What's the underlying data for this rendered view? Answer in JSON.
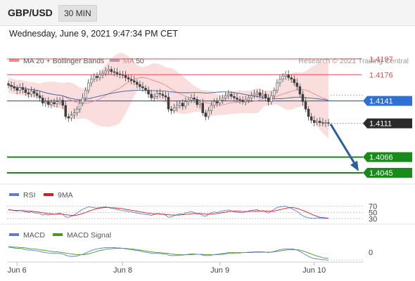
{
  "header": {
    "symbol": "GBP/USD",
    "timeframe": "30 MIN",
    "datetime": "Wednesday, June 9, 2021 9:47:34 PM CET"
  },
  "legend": {
    "ma20": "MA 20 + Bollinger Bands",
    "ma50": "MA 50",
    "credit": "Research © 2021 Trading Central",
    "rsi": "RSI",
    "rsi_ma": "9MA",
    "macd": "MACD",
    "macd_signal": "MACD Signal"
  },
  "colors": {
    "bollinger": "#f7c8c8",
    "ma20": "#f08a8a",
    "ma50": "#3a5f9e",
    "resistance": "#e05050",
    "pivot": "#2f6fd6",
    "support": "#1a8a1a",
    "current": "#2b2b2b",
    "arrow": "#2e5f9a",
    "rsi": "#5b7fd4",
    "rsi_ma": "#d02020",
    "macd": "#5b7fd4",
    "macd_signal": "#4a9a1a"
  },
  "chart_data": [
    {
      "type": "candlestick",
      "x_ticks": [
        "Jun 6",
        "Jun 8",
        "Jun 9",
        "Jun 10"
      ],
      "ylim": [
        1.403,
        1.421
      ],
      "levels": [
        {
          "label": "1.4197",
          "value": 1.4197,
          "kind": "resistance"
        },
        {
          "label": "1.4176",
          "value": 1.4176,
          "kind": "resistance"
        },
        {
          "label": "1.4141",
          "value": 1.4141,
          "kind": "pivot"
        },
        {
          "label": "1.4111",
          "value": 1.4111,
          "kind": "current"
        },
        {
          "label": "1.4066",
          "value": 1.4066,
          "kind": "support"
        },
        {
          "label": "1.4045",
          "value": 1.4045,
          "kind": "support"
        }
      ],
      "close": [
        1.4162,
        1.416,
        1.4158,
        1.4155,
        1.4159,
        1.4156,
        1.4152,
        1.415,
        1.4154,
        1.4151,
        1.4148,
        1.4145,
        1.4138,
        1.414,
        1.4136,
        1.4139,
        1.4137,
        1.414,
        1.4142,
        1.4135,
        1.412,
        1.4118,
        1.4122,
        1.4125,
        1.413,
        1.4138,
        1.4145,
        1.4155,
        1.4165,
        1.417,
        1.4174,
        1.4172,
        1.4176,
        1.4178,
        1.4181,
        1.4183,
        1.418,
        1.4179,
        1.4177,
        1.4176,
        1.4175,
        1.4172,
        1.417,
        1.4168,
        1.4166,
        1.4163,
        1.416,
        1.4158,
        1.4155,
        1.415,
        1.4145,
        1.4147,
        1.4151,
        1.415,
        1.4148,
        1.4146,
        1.413,
        1.4128,
        1.4132,
        1.4135,
        1.4138,
        1.4134,
        1.414,
        1.4142,
        1.4145,
        1.4143,
        1.4136,
        1.4138,
        1.4125,
        1.412,
        1.4128,
        1.4135,
        1.414,
        1.4138,
        1.4142,
        1.4145,
        1.4148,
        1.415,
        1.4147,
        1.4145,
        1.4143,
        1.4142,
        1.414,
        1.4142,
        1.4145,
        1.4148,
        1.415,
        1.4152,
        1.4148,
        1.415,
        1.4145,
        1.414,
        1.4148,
        1.4155,
        1.4165,
        1.417,
        1.4174,
        1.4176,
        1.4172,
        1.417,
        1.4165,
        1.416,
        1.415,
        1.414,
        1.413,
        1.412,
        1.4115,
        1.4112,
        1.4114,
        1.4112,
        1.4111,
        1.4112,
        1.4111
      ]
    },
    {
      "type": "line",
      "name": "RSI",
      "levels": [
        70,
        50,
        30
      ],
      "ylim": [
        20,
        80
      ],
      "series": [
        {
          "name": "RSI",
          "values": [
            60,
            58,
            56,
            55,
            57,
            55,
            52,
            50,
            52,
            49,
            48,
            47,
            42,
            44,
            42,
            45,
            44,
            46,
            48,
            44,
            36,
            35,
            38,
            42,
            48,
            55,
            60,
            64,
            68,
            67,
            65,
            64,
            66,
            67,
            68,
            66,
            63,
            62,
            60,
            58,
            56,
            55,
            53,
            52,
            50,
            48,
            47,
            45,
            44,
            43,
            41,
            44,
            47,
            46,
            44,
            42,
            35,
            36,
            40,
            43,
            46,
            44,
            49,
            51,
            53,
            50,
            45,
            46,
            40,
            38,
            44,
            49,
            52,
            50,
            53,
            55,
            57,
            58,
            55,
            53,
            51,
            50,
            49,
            52,
            55,
            57,
            58,
            59,
            55,
            56,
            52,
            48,
            54,
            60,
            66,
            68,
            69,
            70,
            66,
            63,
            58,
            54,
            46,
            40,
            36,
            33,
            32,
            31,
            33,
            32,
            31,
            32,
            31
          ]
        },
        {
          "name": "9MA",
          "values": [
            58,
            58,
            57,
            57,
            56,
            56,
            55,
            54,
            54,
            53,
            52,
            51,
            49,
            48,
            47,
            46,
            45,
            45,
            45,
            45,
            43,
            42,
            41,
            41,
            42,
            44,
            47,
            50,
            54,
            57,
            60,
            62,
            64,
            65,
            66,
            66,
            65,
            65,
            64,
            63,
            62,
            60,
            59,
            57,
            56,
            54,
            52,
            51,
            49,
            48,
            47,
            46,
            46,
            45,
            45,
            44,
            43,
            42,
            42,
            42,
            42,
            43,
            44,
            45,
            46,
            47,
            47,
            47,
            46,
            45,
            45,
            45,
            46,
            47,
            48,
            50,
            51,
            53,
            54,
            55,
            55,
            54,
            53,
            53,
            53,
            54,
            54,
            55,
            55,
            55,
            55,
            54,
            54,
            55,
            57,
            59,
            61,
            63,
            65,
            66,
            65,
            63,
            60,
            57,
            53,
            49,
            45,
            41,
            38,
            35,
            34,
            33,
            32
          ]
        }
      ]
    },
    {
      "type": "line",
      "name": "MACD",
      "levels": [
        0
      ],
      "ylim": [
        -0.003,
        0.003
      ],
      "series": [
        {
          "name": "MACD",
          "values": [
            0.0012,
            0.0011,
            0.001,
            0.0009,
            0.0009,
            0.0008,
            0.0006,
            0.0005,
            0.0005,
            0.0004,
            0.0003,
            0.0002,
            0.0,
            -0.0001,
            -0.0002,
            -0.0002,
            -0.0003,
            -0.0003,
            -0.0003,
            -0.0004,
            -0.0007,
            -0.0009,
            -0.001,
            -0.001,
            -0.0009,
            -0.0007,
            -0.0005,
            -0.0002,
            0.0001,
            0.0004,
            0.0006,
            0.0008,
            0.0009,
            0.001,
            0.0011,
            0.0011,
            0.0011,
            0.0011,
            0.001,
            0.001,
            0.0009,
            0.0008,
            0.0007,
            0.0006,
            0.0005,
            0.0004,
            0.0003,
            0.0001,
            0.0,
            -0.0001,
            -0.0003,
            -0.0003,
            -0.0003,
            -0.0003,
            -0.0004,
            -0.0004,
            -0.0007,
            -0.0008,
            -0.0008,
            -0.0008,
            -0.0007,
            -0.0007,
            -0.0006,
            -0.0005,
            -0.0004,
            -0.0004,
            -0.0005,
            -0.0005,
            -0.0007,
            -0.0008,
            -0.0008,
            -0.0007,
            -0.0006,
            -0.0005,
            -0.0004,
            -0.0003,
            -0.0002,
            -0.0001,
            -0.0001,
            -0.0001,
            -0.0001,
            -0.0001,
            -0.0001,
            -0.0001,
            0.0,
            0.0,
            0.0001,
            0.0001,
            0.0001,
            0.0001,
            0.0,
            -0.0001,
            0.0,
            0.0002,
            0.0004,
            0.0006,
            0.0007,
            0.0008,
            0.0008,
            0.0008,
            0.0007,
            0.0005,
            0.0002,
            -0.0002,
            -0.0006,
            -0.001,
            -0.0013,
            -0.0015,
            -0.0016,
            -0.0017,
            -0.0018,
            -0.0018,
            -0.0019
          ]
        },
        {
          "name": "MACD Signal",
          "values": [
            0.0013,
            0.0013,
            0.0012,
            0.0012,
            0.0011,
            0.0011,
            0.001,
            0.0009,
            0.0008,
            0.0008,
            0.0007,
            0.0006,
            0.0005,
            0.0004,
            0.0003,
            0.0002,
            0.0001,
            0.0001,
            0.0,
            -0.0001,
            -0.0002,
            -0.0003,
            -0.0004,
            -0.0005,
            -0.0006,
            -0.0006,
            -0.0006,
            -0.0005,
            -0.0004,
            -0.0002,
            0.0,
            0.0002,
            0.0004,
            0.0005,
            0.0007,
            0.0008,
            0.0008,
            0.0009,
            0.0009,
            0.0009,
            0.0009,
            0.0009,
            0.0008,
            0.0008,
            0.0007,
            0.0006,
            0.0005,
            0.0004,
            0.0003,
            0.0002,
            0.0001,
            0.0,
            -0.0001,
            -0.0001,
            -0.0002,
            -0.0002,
            -0.0003,
            -0.0004,
            -0.0005,
            -0.0006,
            -0.0006,
            -0.0006,
            -0.0006,
            -0.0006,
            -0.0006,
            -0.0005,
            -0.0005,
            -0.0005,
            -0.0005,
            -0.0006,
            -0.0006,
            -0.0006,
            -0.0006,
            -0.0006,
            -0.0005,
            -0.0005,
            -0.0004,
            -0.0003,
            -0.0003,
            -0.0002,
            -0.0002,
            -0.0002,
            -0.0001,
            -0.0001,
            -0.0001,
            -0.0001,
            0.0,
            0.0,
            0.0,
            0.0,
            0.0,
            0.0,
            0.0,
            0.0001,
            0.0002,
            0.0003,
            0.0004,
            0.0005,
            0.0006,
            0.0006,
            0.0006,
            0.0006,
            0.0005,
            0.0003,
            0.0001,
            -0.0002,
            -0.0004,
            -0.0007,
            -0.0009,
            -0.0011,
            -0.0013,
            -0.0014,
            -0.0015
          ]
        }
      ]
    }
  ]
}
